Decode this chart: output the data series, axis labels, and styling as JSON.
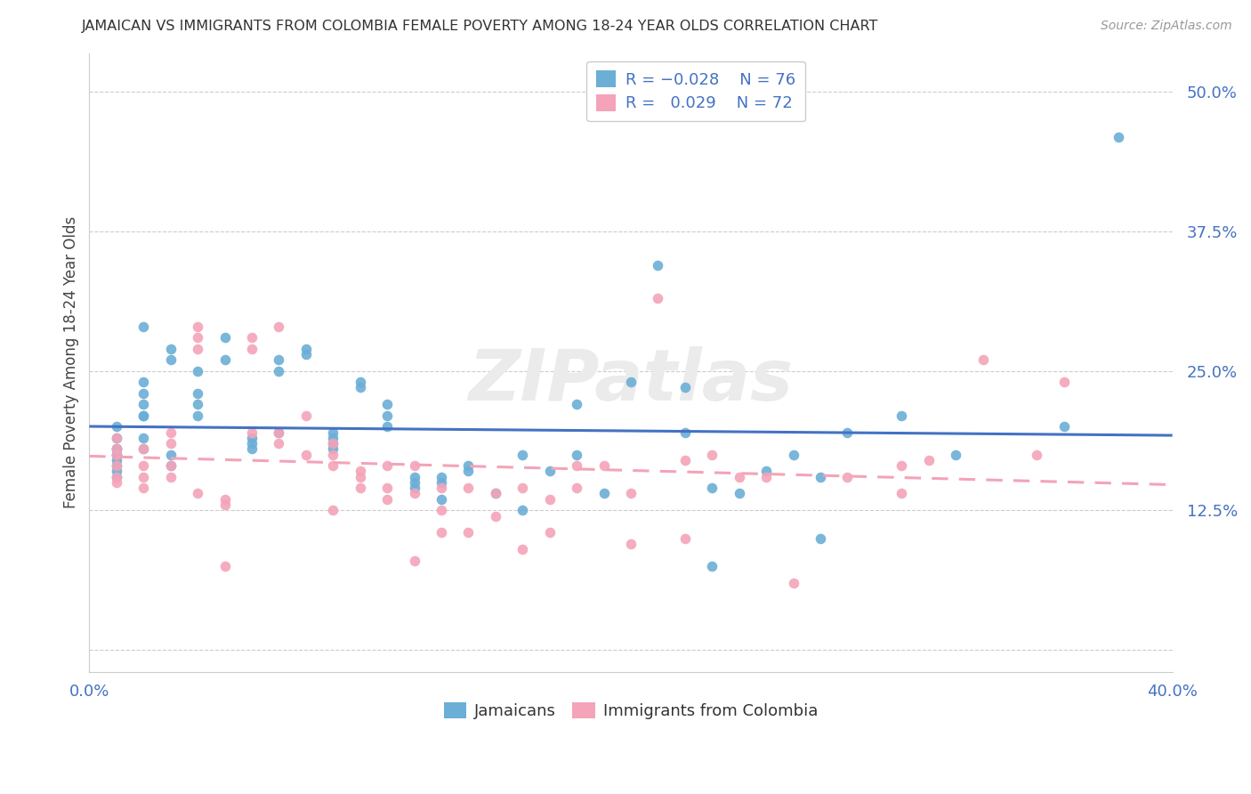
{
  "title": "JAMAICAN VS IMMIGRANTS FROM COLOMBIA FEMALE POVERTY AMONG 18-24 YEAR OLDS CORRELATION CHART",
  "source": "Source: ZipAtlas.com",
  "ylabel": "Female Poverty Among 18-24 Year Olds",
  "yticks": [
    0.0,
    0.125,
    0.25,
    0.375,
    0.5
  ],
  "ytick_labels": [
    "",
    "12.5%",
    "25.0%",
    "37.5%",
    "50.0%"
  ],
  "xlim": [
    0.0,
    0.4
  ],
  "ylim": [
    -0.02,
    0.535
  ],
  "color_blue": "#6baed6",
  "color_pink": "#f4a3b8",
  "color_blue_dark": "#4472C4",
  "line_blue": "#4472C4",
  "line_pink": "#f4a3b8",
  "background_color": "#ffffff",
  "grid_color": "#cccccc",
  "jamaicans_x": [
    0.02,
    0.04,
    0.02,
    0.01,
    0.01,
    0.01,
    0.01,
    0.02,
    0.03,
    0.03,
    0.01,
    0.01,
    0.01,
    0.01,
    0.01,
    0.01,
    0.02,
    0.02,
    0.02,
    0.02,
    0.02,
    0.03,
    0.03,
    0.04,
    0.04,
    0.04,
    0.05,
    0.05,
    0.06,
    0.06,
    0.06,
    0.07,
    0.07,
    0.07,
    0.08,
    0.08,
    0.09,
    0.09,
    0.09,
    0.09,
    0.1,
    0.1,
    0.11,
    0.11,
    0.11,
    0.12,
    0.12,
    0.12,
    0.13,
    0.13,
    0.13,
    0.14,
    0.14,
    0.15,
    0.16,
    0.16,
    0.17,
    0.18,
    0.18,
    0.19,
    0.2,
    0.21,
    0.22,
    0.22,
    0.23,
    0.23,
    0.24,
    0.25,
    0.26,
    0.27,
    0.27,
    0.28,
    0.3,
    0.32,
    0.36,
    0.38
  ],
  "jamaicans_y": [
    0.21,
    0.21,
    0.19,
    0.2,
    0.19,
    0.18,
    0.175,
    0.18,
    0.175,
    0.165,
    0.18,
    0.175,
    0.17,
    0.165,
    0.16,
    0.155,
    0.29,
    0.24,
    0.23,
    0.22,
    0.21,
    0.27,
    0.26,
    0.25,
    0.23,
    0.22,
    0.28,
    0.26,
    0.19,
    0.185,
    0.18,
    0.26,
    0.25,
    0.195,
    0.27,
    0.265,
    0.195,
    0.19,
    0.185,
    0.18,
    0.24,
    0.235,
    0.22,
    0.21,
    0.2,
    0.155,
    0.15,
    0.145,
    0.155,
    0.15,
    0.135,
    0.165,
    0.16,
    0.14,
    0.175,
    0.125,
    0.16,
    0.22,
    0.175,
    0.14,
    0.24,
    0.345,
    0.235,
    0.195,
    0.145,
    0.075,
    0.14,
    0.16,
    0.175,
    0.155,
    0.1,
    0.195,
    0.21,
    0.175,
    0.2,
    0.46
  ],
  "colombia_x": [
    0.01,
    0.01,
    0.01,
    0.01,
    0.01,
    0.01,
    0.02,
    0.02,
    0.02,
    0.02,
    0.03,
    0.03,
    0.03,
    0.03,
    0.04,
    0.04,
    0.04,
    0.04,
    0.05,
    0.05,
    0.05,
    0.06,
    0.06,
    0.06,
    0.07,
    0.07,
    0.07,
    0.08,
    0.08,
    0.09,
    0.09,
    0.09,
    0.09,
    0.1,
    0.1,
    0.1,
    0.11,
    0.11,
    0.11,
    0.12,
    0.12,
    0.12,
    0.13,
    0.13,
    0.13,
    0.14,
    0.14,
    0.15,
    0.15,
    0.16,
    0.16,
    0.17,
    0.17,
    0.18,
    0.18,
    0.19,
    0.2,
    0.2,
    0.21,
    0.22,
    0.22,
    0.23,
    0.24,
    0.25,
    0.26,
    0.28,
    0.3,
    0.3,
    0.31,
    0.33,
    0.35,
    0.36
  ],
  "colombia_y": [
    0.19,
    0.18,
    0.175,
    0.165,
    0.155,
    0.15,
    0.18,
    0.165,
    0.155,
    0.145,
    0.195,
    0.185,
    0.165,
    0.155,
    0.29,
    0.28,
    0.27,
    0.14,
    0.135,
    0.13,
    0.075,
    0.28,
    0.27,
    0.195,
    0.29,
    0.195,
    0.185,
    0.21,
    0.175,
    0.185,
    0.175,
    0.165,
    0.125,
    0.16,
    0.155,
    0.145,
    0.165,
    0.145,
    0.135,
    0.165,
    0.14,
    0.08,
    0.145,
    0.125,
    0.105,
    0.145,
    0.105,
    0.14,
    0.12,
    0.145,
    0.09,
    0.135,
    0.105,
    0.165,
    0.145,
    0.165,
    0.14,
    0.095,
    0.315,
    0.17,
    0.1,
    0.175,
    0.155,
    0.155,
    0.06,
    0.155,
    0.165,
    0.14,
    0.17,
    0.26,
    0.175,
    0.24
  ]
}
